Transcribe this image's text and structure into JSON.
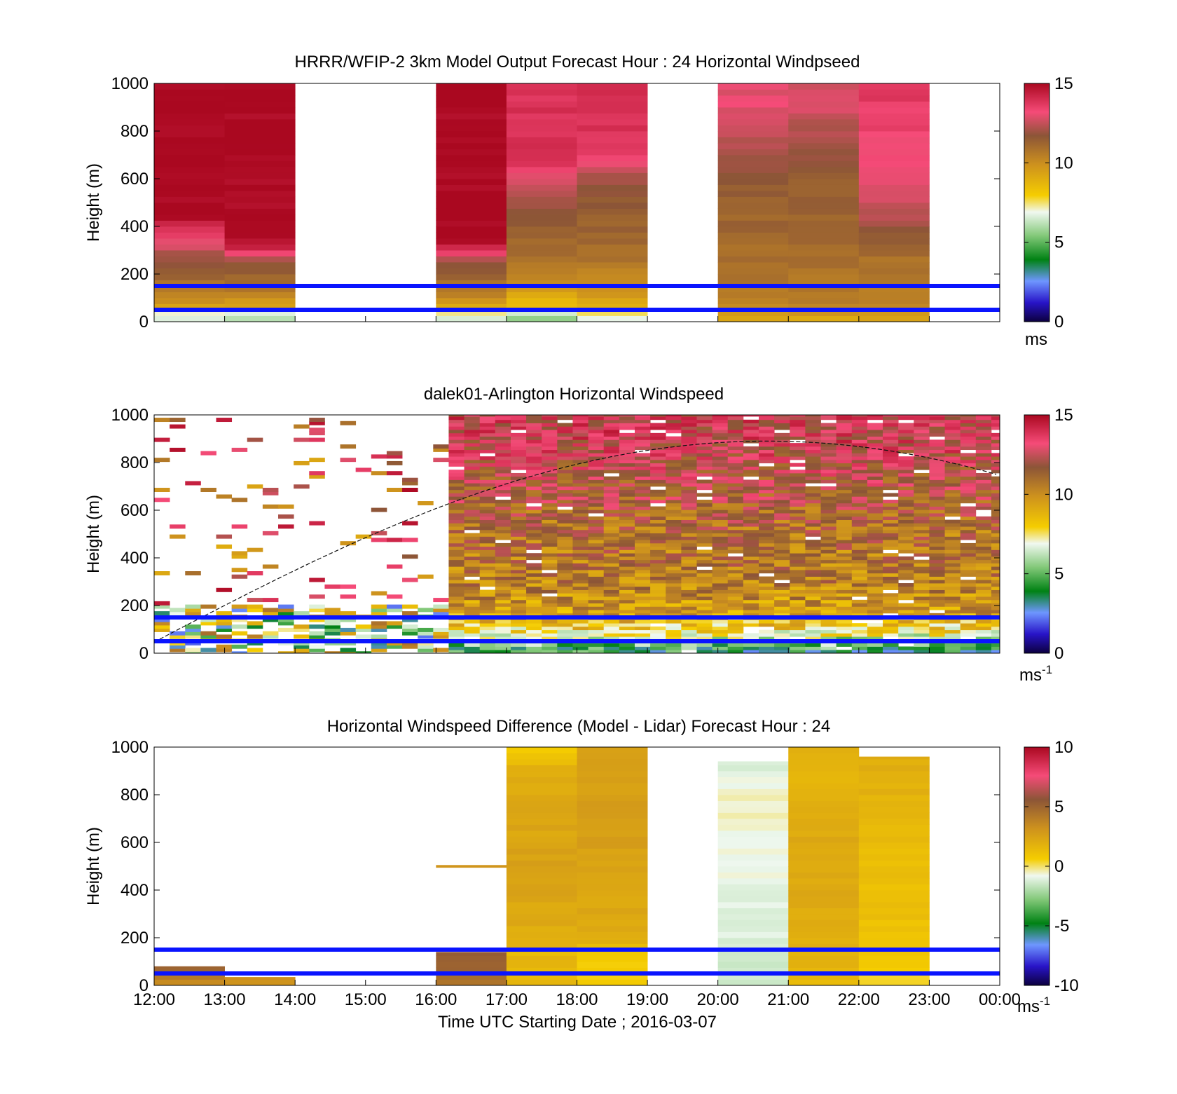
{
  "figure": {
    "xlabel": "Time UTC  Starting Date ; 2016-03-07",
    "x_tick_labels": [
      "12:00",
      "13:00",
      "14:00",
      "15:00",
      "16:00",
      "17:00",
      "18:00",
      "19:00",
      "20:00",
      "21:00",
      "22:00",
      "23:00",
      "00:00"
    ],
    "guide_line_heights_m": [
      50,
      150
    ],
    "guide_line_color": "#0a14ff"
  },
  "chart_data": [
    {
      "type": "heatmap",
      "title": "HRRR/WFIP-2 3km Model Output   Forecast Hour : 24 Horizontal Windpseed",
      "ylabel": "Height (m)",
      "ylim": [
        0,
        1000
      ],
      "y_ticks": [
        0,
        200,
        400,
        600,
        800,
        1000
      ],
      "xlim_hours": [
        12,
        24
      ],
      "colorbar": {
        "range": [
          0,
          15
        ],
        "ticks": [
          0,
          5,
          10,
          15
        ],
        "unit_main": "ms",
        "unit_sup": ""
      },
      "columns": [
        {
          "t0": 12,
          "t1": 13,
          "top": 1000,
          "profile": [
            [
              0,
              7
            ],
            [
              30,
              6
            ],
            [
              50,
              9
            ],
            [
              100,
              10
            ],
            [
              170,
              11
            ],
            [
              280,
              12
            ],
            [
              330,
              13
            ],
            [
              390,
              14
            ],
            [
              450,
              15
            ],
            [
              1000,
              15
            ]
          ]
        },
        {
          "t0": 13,
          "t1": 14,
          "top": 1000,
          "profile": [
            [
              0,
              7
            ],
            [
              30,
              5
            ],
            [
              50,
              9
            ],
            [
              100,
              10
            ],
            [
              160,
              11
            ],
            [
              260,
              12
            ],
            [
              300,
              14
            ],
            [
              350,
              15
            ],
            [
              1000,
              15
            ]
          ]
        },
        {
          "t0": 16,
          "t1": 17,
          "top": 1000,
          "profile": [
            [
              0,
              7
            ],
            [
              30,
              6
            ],
            [
              50,
              9
            ],
            [
              100,
              10
            ],
            [
              160,
              11
            ],
            [
              260,
              12
            ],
            [
              300,
              14
            ],
            [
              350,
              15
            ],
            [
              1000,
              15
            ]
          ]
        },
        {
          "t0": 17,
          "t1": 18,
          "top": 1000,
          "profile": [
            [
              0,
              6
            ],
            [
              30,
              5
            ],
            [
              50,
              8.5
            ],
            [
              100,
              9
            ],
            [
              160,
              10
            ],
            [
              300,
              11
            ],
            [
              500,
              12
            ],
            [
              600,
              13
            ],
            [
              700,
              14
            ],
            [
              800,
              13.8
            ],
            [
              900,
              13.9
            ],
            [
              1000,
              13.9
            ]
          ]
        },
        {
          "t0": 18,
          "t1": 19,
          "top": 1000,
          "profile": [
            [
              0,
              7
            ],
            [
              30,
              7
            ],
            [
              50,
              9
            ],
            [
              100,
              9.5
            ],
            [
              160,
              10
            ],
            [
              300,
              11
            ],
            [
              500,
              11.5
            ],
            [
              600,
              12
            ],
            [
              700,
              13.5
            ],
            [
              800,
              13.9
            ],
            [
              900,
              14
            ],
            [
              1000,
              14
            ]
          ]
        },
        {
          "t0": 20,
          "t1": 21,
          "top": 1000,
          "profile": [
            [
              0,
              9
            ],
            [
              30,
              9.5
            ],
            [
              50,
              10
            ],
            [
              100,
              10.5
            ],
            [
              300,
              11
            ],
            [
              600,
              11.5
            ],
            [
              700,
              12
            ],
            [
              800,
              12.5
            ],
            [
              900,
              13
            ],
            [
              1000,
              13
            ]
          ]
        },
        {
          "t0": 21,
          "t1": 22,
          "top": 1000,
          "profile": [
            [
              0,
              9
            ],
            [
              30,
              9.5
            ],
            [
              50,
              10
            ],
            [
              100,
              10.5
            ],
            [
              300,
              11
            ],
            [
              600,
              11.5
            ],
            [
              700,
              12
            ],
            [
              800,
              12.2
            ],
            [
              900,
              12.8
            ],
            [
              1000,
              12.8
            ]
          ]
        },
        {
          "t0": 22,
          "t1": 23,
          "top": 1000,
          "profile": [
            [
              0,
              9
            ],
            [
              30,
              9.5
            ],
            [
              50,
              10
            ],
            [
              100,
              10.5
            ],
            [
              300,
              11
            ],
            [
              400,
              12
            ],
            [
              500,
              12.5
            ],
            [
              600,
              13
            ],
            [
              700,
              13.2
            ],
            [
              800,
              13.4
            ],
            [
              900,
              13.6
            ],
            [
              1000,
              13.6
            ]
          ]
        }
      ]
    },
    {
      "type": "heatmap",
      "title": "dalek01-Arlington  Horizontal Windspeed",
      "ylabel": "Height (m)",
      "ylim": [
        0,
        1000
      ],
      "y_ticks": [
        0,
        200,
        400,
        600,
        800,
        1000
      ],
      "xlim_hours": [
        12,
        24
      ],
      "colorbar": {
        "range": [
          0,
          15
        ],
        "ticks": [
          0,
          5,
          10,
          15
        ],
        "unit_main": "ms",
        "unit_sup": "-1"
      },
      "sparse_until_hour": 16.1,
      "dense_profile": [
        [
          0,
          4
        ],
        [
          50,
          6
        ],
        [
          100,
          8
        ],
        [
          160,
          9.5
        ],
        [
          300,
          10.5
        ],
        [
          500,
          11
        ],
        [
          700,
          12
        ],
        [
          900,
          13
        ],
        [
          1000,
          13
        ]
      ],
      "curve": {
        "peak_hour": 20.7,
        "peak_height_m": 890,
        "rise_hours": 18,
        "style": "dashed"
      }
    },
    {
      "type": "heatmap",
      "title": "Horizontal Windspeed Difference (Model - Lidar) Forecast Hour : 24",
      "ylabel": "Height (m)",
      "ylim": [
        0,
        1000
      ],
      "y_ticks": [
        0,
        200,
        400,
        600,
        800,
        1000
      ],
      "xlim_hours": [
        12,
        24
      ],
      "colorbar": {
        "range": [
          -10,
          10
        ],
        "ticks": [
          -10,
          -5,
          0,
          5,
          10
        ],
        "unit_main": "ms",
        "unit_sup": "-1"
      },
      "columns": [
        {
          "t0": 12,
          "t1": 13,
          "top": 80,
          "profile": [
            [
              0,
              3
            ],
            [
              30,
              4
            ],
            [
              60,
              5
            ],
            [
              80,
              5
            ]
          ]
        },
        {
          "t0": 13,
          "t1": 14,
          "top": 35,
          "profile": [
            [
              0,
              3
            ],
            [
              35,
              3
            ]
          ]
        },
        {
          "t0": 16,
          "t1": 17,
          "top": 140,
          "profile": [
            [
              0,
              4
            ],
            [
              50,
              5
            ],
            [
              140,
              5.5
            ]
          ]
        },
        {
          "t0": 16,
          "t1": 17,
          "bottom": 495,
          "top": 505,
          "profile": [
            [
              0,
              3
            ],
            [
              1000,
              3
            ]
          ]
        },
        {
          "t0": 17,
          "t1": 18,
          "top": 1000,
          "profile": [
            [
              0,
              1.5
            ],
            [
              150,
              1.5
            ],
            [
              200,
              2
            ],
            [
              500,
              2.5
            ],
            [
              700,
              2.2
            ],
            [
              900,
              2
            ],
            [
              950,
              1
            ],
            [
              1000,
              0.5
            ]
          ]
        },
        {
          "t0": 18,
          "t1": 19,
          "top": 1000,
          "profile": [
            [
              0,
              0.5
            ],
            [
              150,
              1
            ],
            [
              200,
              2
            ],
            [
              500,
              2.5
            ],
            [
              800,
              2.6
            ],
            [
              1000,
              2.6
            ]
          ]
        },
        {
          "t0": 20,
          "t1": 21,
          "top": 940,
          "profile": [
            [
              0,
              -1.5
            ],
            [
              300,
              -1
            ],
            [
              600,
              -0.8
            ],
            [
              800,
              -0.5
            ],
            [
              900,
              -1
            ],
            [
              940,
              -1.5
            ]
          ]
        },
        {
          "t0": 21,
          "t1": 22,
          "top": 1000,
          "profile": [
            [
              0,
              1.5
            ],
            [
              200,
              2
            ],
            [
              500,
              2.2
            ],
            [
              800,
              2
            ],
            [
              950,
              1.5
            ],
            [
              1000,
              2
            ]
          ]
        },
        {
          "t0": 22,
          "t1": 23,
          "top": 960,
          "profile": [
            [
              0,
              0.3
            ],
            [
              150,
              0.8
            ],
            [
              200,
              1.2
            ],
            [
              500,
              1.2
            ],
            [
              800,
              1.8
            ],
            [
              960,
              2
            ]
          ]
        }
      ]
    }
  ]
}
